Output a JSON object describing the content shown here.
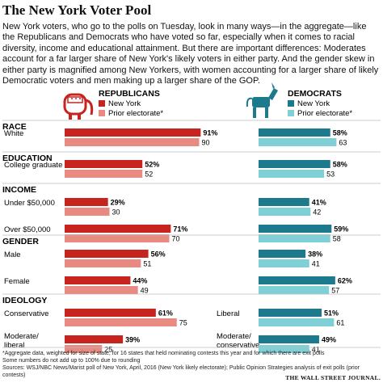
{
  "title": "The New York Voter Pool",
  "intro": "New York voters, who go to the polls on Tuesday, look in many ways—in the aggregate—like the Republicans and Democrats who have voted so far, especially when it comes to racial diversity, income and educational attainment. But there are important differences: Moderates account for a far larger share of New York's likely voters in either party. And the gender skew in either party is magnified among New Yorkers, with women accounting for a larger share of likely Democratic voters and men making up a larger share of the GOP.",
  "footnote1": "*Aggregate data, weighted for size of state, for 16 states that held nominating contests this year and for which there are exit polls",
  "footnote2": "Some numbers do not add up to 100% due to rounding",
  "sources": "Sources: WSJ/NBC News/Marist poll of New York, April, 2016 (New York likely electorate); Public Opinion Strategies analysis of exit polls (prior contests)",
  "credit": "THE WALL STREET JOURNAL.",
  "colors": {
    "rep_ny": "#c8241f",
    "rep_prior": "#e98a82",
    "dem_ny": "#1c7a8c",
    "dem_prior": "#7fcfd6"
  },
  "chart_data": {
    "type": "bar",
    "orientation": "horizontal",
    "value_unit": "%",
    "panels": [
      {
        "party": "REPUBLICANS",
        "icon": "elephant-icon",
        "series": [
          {
            "name": "New York"
          },
          {
            "name": "Prior electorate*"
          }
        ]
      },
      {
        "party": "DEMOCRATS",
        "icon": "donkey-icon",
        "series": [
          {
            "name": "New York"
          },
          {
            "name": "Prior electorate*"
          }
        ]
      }
    ],
    "sections": [
      {
        "heading": "RACE",
        "rows": [
          {
            "label": "White",
            "rep": [
              91,
              90
            ],
            "dem": [
              58,
              63
            ]
          }
        ]
      },
      {
        "heading": "EDUCATION",
        "rows": [
          {
            "label": "College graduate",
            "rep": [
              52,
              52
            ],
            "dem": [
              58,
              53
            ]
          }
        ]
      },
      {
        "heading": "INCOME",
        "rows": [
          {
            "label": "Under $50,000",
            "rep": [
              29,
              30
            ],
            "dem": [
              41,
              42
            ]
          },
          {
            "label": "Over $50,000",
            "rep": [
              71,
              70
            ],
            "dem": [
              59,
              58
            ]
          }
        ]
      },
      {
        "heading": "GENDER",
        "rows": [
          {
            "label": "Male",
            "rep": [
              56,
              51
            ],
            "dem": [
              38,
              41
            ]
          },
          {
            "label": "Female",
            "rep": [
              44,
              49
            ],
            "dem": [
              62,
              57
            ]
          }
        ]
      },
      {
        "heading": "IDEOLOGY",
        "rows": [
          {
            "label": "Conservative",
            "rep": [
              61,
              75
            ],
            "dem_label": "Liberal",
            "dem": [
              51,
              61
            ]
          },
          {
            "label": "Moderate/ liberal",
            "rep": [
              39,
              25
            ],
            "dem_label": "Moderate/ conservative",
            "dem": [
              49,
              41
            ]
          }
        ]
      }
    ]
  }
}
